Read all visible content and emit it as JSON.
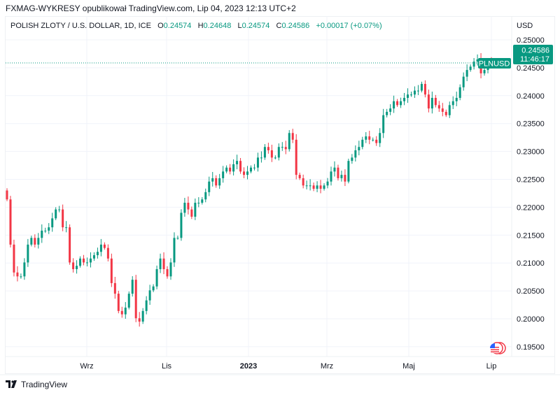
{
  "publisher_line": "FXMAG-WYKRESY opublikował TradingView.com, Lip 04, 2023 12:13 UTC+2",
  "legend": {
    "symbol": "POLISH ZLOTY / U.S. DOLLAR, 1D, ICE",
    "o_label": "O",
    "o": "0.24574",
    "h_label": "H",
    "h": "0.24648",
    "l_label": "L",
    "l": "0.24574",
    "c_label": "C",
    "c": "0.24586",
    "change": "+0.00017 (+0.07%)"
  },
  "price_axis": {
    "currency": "USD"
  },
  "last_price": {
    "ticker": "PLNUSD",
    "price": "0.24586",
    "countdown": "11:46:17"
  },
  "branding": {
    "logo_text": "TradingView",
    "logo_icon": "tradingview-logo-icon",
    "flag_icon": "us-flag-icon"
  },
  "colors": {
    "up": "#089981",
    "down": "#f23645",
    "grid": "#f0f3fa",
    "text": "#131722"
  },
  "chart_data": {
    "type": "candlestick",
    "title": "POLISH ZLOTY / U.S. DOLLAR, 1D, ICE",
    "ylim": [
      0.1925,
      0.2525
    ],
    "y_ticks": [
      "0.25000",
      "0.24500",
      "0.24000",
      "0.23500",
      "0.23000",
      "0.22500",
      "0.22000",
      "0.21500",
      "0.21000",
      "0.20500",
      "0.20000",
      "0.19500"
    ],
    "x_ticks": [
      "Wrz",
      "Lis",
      "2023",
      "Mrz",
      "Maj",
      "Lip"
    ],
    "grid": true,
    "first_open": 0.223,
    "closes": [
      0.2214,
      0.2133,
      0.2083,
      0.2076,
      0.2076,
      0.2101,
      0.2133,
      0.2145,
      0.2133,
      0.2145,
      0.2158,
      0.2158,
      0.2164,
      0.218,
      0.2196,
      0.2196,
      0.2164,
      0.2164,
      0.2101,
      0.2089,
      0.2095,
      0.2108,
      0.2101,
      0.2101,
      0.2108,
      0.2114,
      0.212,
      0.2133,
      0.2127,
      0.2108,
      0.2064,
      0.2045,
      0.2014,
      0.2008,
      0.202,
      0.2045,
      0.207,
      0.2001,
      0.1995,
      0.2014,
      0.2033,
      0.2051,
      0.2058,
      0.2089,
      0.2108,
      0.2089,
      0.2076,
      0.2101,
      0.2145,
      0.2145,
      0.219,
      0.2208,
      0.2196,
      0.2183,
      0.2208,
      0.2208,
      0.2214,
      0.2227,
      0.2246,
      0.2252,
      0.2239,
      0.2252,
      0.2264,
      0.2271,
      0.2264,
      0.2277,
      0.2283,
      0.2264,
      0.2258,
      0.2264,
      0.2271,
      0.2271,
      0.2289,
      0.2289,
      0.2308,
      0.2302,
      0.2289,
      0.2289,
      0.2308,
      0.2308,
      0.2304,
      0.2333,
      0.2321,
      0.2258,
      0.2252,
      0.2239,
      0.2239,
      0.2239,
      0.2233,
      0.2239,
      0.2233,
      0.2239,
      0.2246,
      0.2264,
      0.2271,
      0.2252,
      0.2258,
      0.2246,
      0.2283,
      0.2289,
      0.2302,
      0.2308,
      0.2321,
      0.2327,
      0.2321,
      0.2321,
      0.2315,
      0.2333,
      0.2365,
      0.2371,
      0.2377,
      0.239,
      0.2383,
      0.239,
      0.2396,
      0.2402,
      0.2402,
      0.2409,
      0.2409,
      0.2421,
      0.2402,
      0.2377,
      0.2396,
      0.2383,
      0.2377,
      0.2371,
      0.2365,
      0.2383,
      0.239,
      0.2396,
      0.2415,
      0.2434,
      0.2446,
      0.2452,
      0.2461,
      0.2465,
      0.244,
      0.2446,
      0.2459,
      0.24586
    ]
  }
}
